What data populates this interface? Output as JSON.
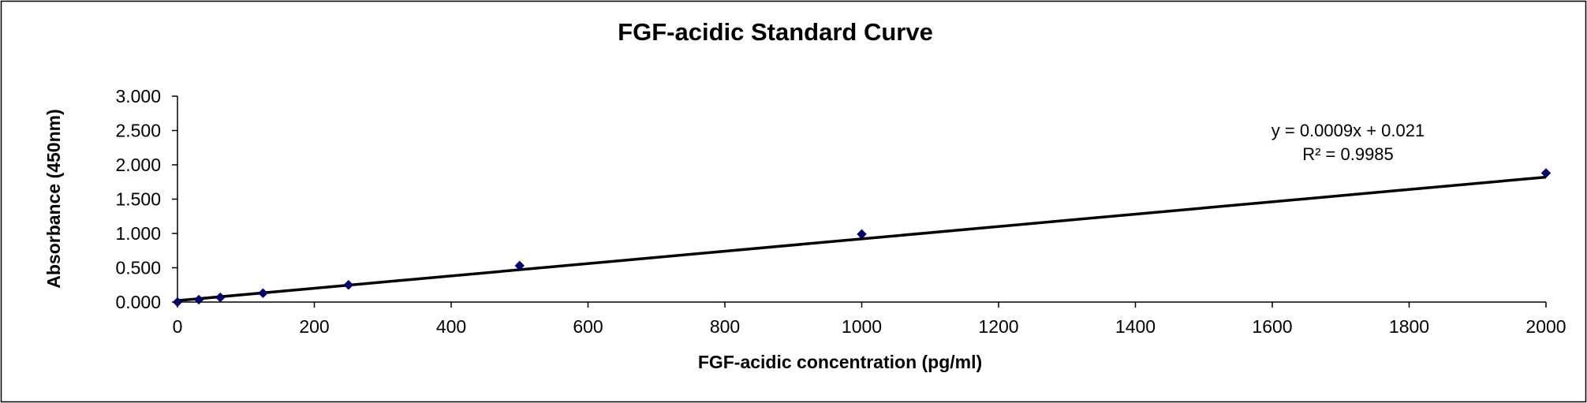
{
  "chart_data": {
    "type": "scatter",
    "title": "FGF-acidic Standard Curve",
    "xlabel": "FGF-acidic concentration (pg/ml)",
    "ylabel": "Absorbance (450nm)",
    "xlim": [
      0,
      2000
    ],
    "ylim": [
      0,
      3
    ],
    "x_ticks": [
      0,
      200,
      400,
      600,
      800,
      1000,
      1200,
      1400,
      1600,
      1800,
      2000
    ],
    "x_tick_labels": [
      "0",
      "200",
      "400",
      "600",
      "800",
      "1000",
      "1200",
      "1400",
      "1600",
      "1800",
      "2000"
    ],
    "y_ticks": [
      0,
      0.5,
      1,
      1.5,
      2,
      2.5,
      3
    ],
    "y_tick_labels": [
      "0.000",
      "0.500",
      "1.000",
      "1.500",
      "2.000",
      "2.500",
      "3.000"
    ],
    "grid": false,
    "legend": "none",
    "series": [
      {
        "marker": "diamond",
        "color": "#000080",
        "points": [
          {
            "x": 0,
            "y": 0.0
          },
          {
            "x": 31.25,
            "y": 0.035
          },
          {
            "x": 62.5,
            "y": 0.068
          },
          {
            "x": 125,
            "y": 0.13
          },
          {
            "x": 250,
            "y": 0.25
          },
          {
            "x": 500,
            "y": 0.53
          },
          {
            "x": 1000,
            "y": 0.99
          },
          {
            "x": 2000,
            "y": 1.88
          }
        ]
      }
    ],
    "trendline": {
      "type": "linear",
      "slope": 0.0009,
      "intercept": 0.021,
      "color": "#000000",
      "equation_label": "y = 0.0009x + 0.021",
      "r2_label": "R² = 0.9985"
    }
  }
}
